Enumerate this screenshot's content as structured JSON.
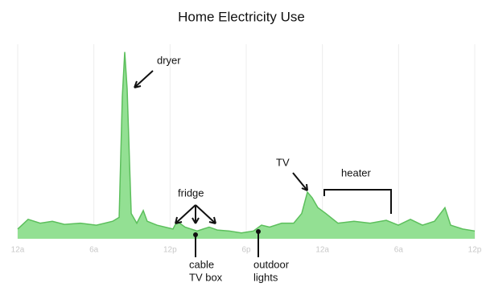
{
  "chart_data": {
    "type": "area",
    "title": "Home Electricity Use",
    "x": [
      0,
      0.82,
      1.77,
      2.73,
      3.68,
      4.94,
      6.2,
      7.48,
      7.99,
      8.24,
      8.43,
      8.62,
      8.94,
      9.38,
      9.89,
      10.2,
      10.97,
      12.23,
      12.55,
      13.18,
      14.13,
      15.08,
      15.72,
      16.67,
      17.62,
      18.57,
      19.2,
      19.84,
      20.79,
      21.74,
      22.37,
      22.82,
      23.2,
      23.64,
      24.27,
      25.22,
      26.49,
      27.76,
      29.03,
      29.98,
      30.93,
      31.88,
      32.83,
      33.65,
      34.1,
      35.05,
      36
    ],
    "values": [
      5,
      10,
      8,
      9,
      7.4,
      8,
      7,
      9,
      11,
      73,
      96,
      77,
      13,
      8,
      14.5,
      9,
      7,
      5,
      9,
      6,
      4,
      6,
      4.5,
      4,
      3,
      4,
      7,
      6,
      8,
      8,
      13,
      24,
      21,
      16,
      13,
      8,
      9,
      8,
      9.5,
      7,
      10,
      7,
      9,
      16,
      7,
      5,
      4
    ],
    "color": "#93e093",
    "line_color": "#5cbf5c",
    "xlim": [
      0,
      36
    ],
    "ylim": [
      0,
      100
    ],
    "xticks": [
      {
        "value": 0,
        "label": "12a"
      },
      {
        "value": 6,
        "label": "6a"
      },
      {
        "value": 12,
        "label": "12p"
      },
      {
        "value": 18,
        "label": "6p"
      },
      {
        "value": 24,
        "label": "12a"
      },
      {
        "value": 30,
        "label": "6a"
      },
      {
        "value": 36,
        "label": "12p"
      }
    ],
    "grid": true,
    "annotations": {
      "dryer": "dryer",
      "fridge": "fridge",
      "tv": "TV",
      "heater": "heater",
      "cable": [
        "cable",
        "TV box"
      ],
      "outdoor": [
        "outdoor",
        "lights"
      ]
    }
  }
}
